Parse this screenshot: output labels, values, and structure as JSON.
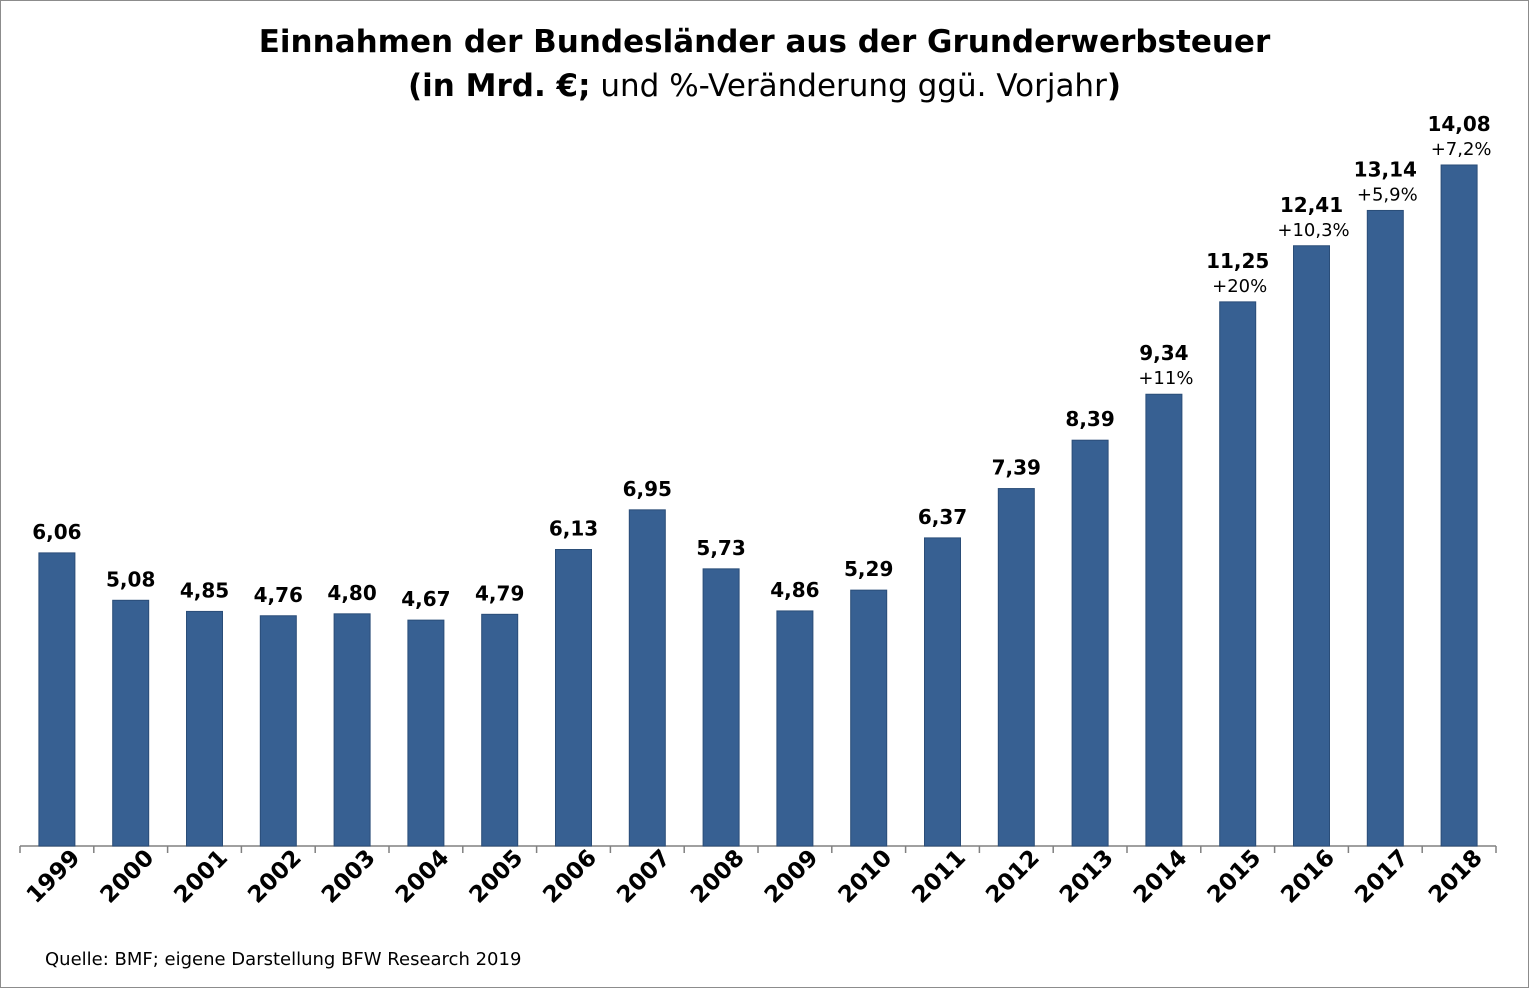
{
  "chart_data": {
    "type": "bar",
    "title_line1": "Einnahmen der Bundesländer aus der Grunderwerbsteuer",
    "title_line2_bold_open": "(in Mrd. €;",
    "title_line2_normal": " und %-Veränderung ggü. Vorjahr",
    "title_line2_bold_close": ")",
    "xlabel": "",
    "ylabel": "",
    "ylim": [
      0,
      15.2
    ],
    "categories": [
      "1999",
      "2000",
      "2001",
      "2002",
      "2003",
      "2004",
      "2005",
      "2006",
      "2007",
      "2008",
      "2009",
      "2010",
      "2011",
      "2012",
      "2013",
      "2014",
      "2015",
      "2016",
      "2017",
      "2018"
    ],
    "values": [
      6.06,
      5.08,
      4.85,
      4.76,
      4.8,
      4.67,
      4.79,
      6.13,
      6.95,
      5.73,
      4.86,
      5.29,
      6.37,
      7.39,
      8.39,
      9.34,
      11.25,
      12.41,
      13.14,
      14.08
    ],
    "value_labels": [
      "6,06",
      "5,08",
      "4,85",
      "4,76",
      "4,80",
      "4,67",
      "4,79",
      "6,13",
      "6,95",
      "5,73",
      "4,86",
      "5,29",
      "6,37",
      "7,39",
      "8,39",
      "9,34",
      "11,25",
      "12,41",
      "13,14",
      "14,08"
    ],
    "pct_labels": [
      "",
      "",
      "",
      "",
      "",
      "",
      "",
      "",
      "",
      "",
      "",
      "",
      "",
      "",
      "",
      "+11%",
      "+20%",
      "+10,3%",
      "+5,9%",
      "+7,2%"
    ],
    "grid": false,
    "legend": "none",
    "bar_color": "#376092"
  },
  "footer": {
    "source": "Quelle: BMF; eigene Darstellung BFW Research 2019"
  }
}
